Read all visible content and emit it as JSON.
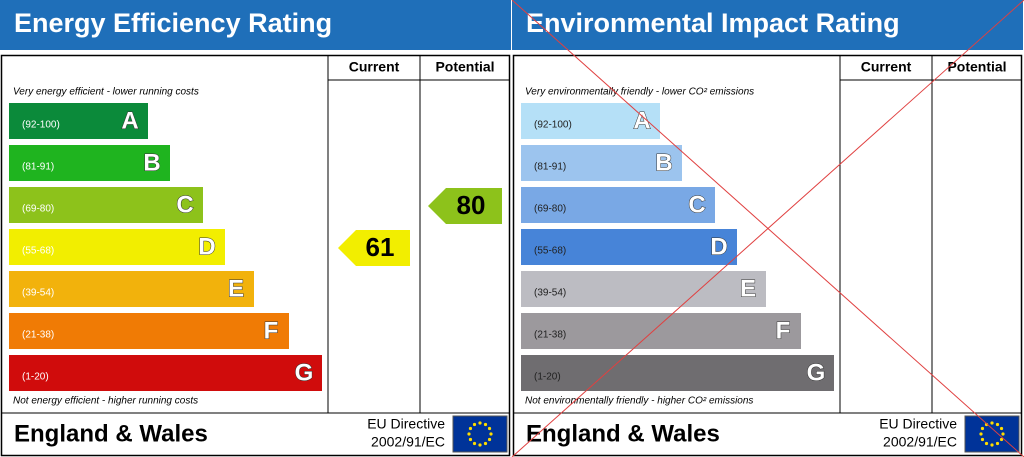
{
  "panels": [
    {
      "title": "Energy Efficiency Rating",
      "columns": [
        "Current",
        "Potential"
      ],
      "top_note": "Very energy efficient - lower running costs",
      "bottom_note": "Not energy efficient - higher running costs",
      "bands": [
        {
          "range": "(92-100)",
          "letter": "A",
          "color": "#0b8a3a"
        },
        {
          "range": "(81-91)",
          "letter": "B",
          "color": "#1fb41f"
        },
        {
          "range": "(69-80)",
          "letter": "C",
          "color": "#8dc21b"
        },
        {
          "range": "(55-68)",
          "letter": "D",
          "color": "#f2ee00"
        },
        {
          "range": "(39-54)",
          "letter": "E",
          "color": "#f2b20c"
        },
        {
          "range": "(21-38)",
          "letter": "F",
          "color": "#f07b05"
        },
        {
          "range": "(1-20)",
          "letter": "G",
          "color": "#d00c0c"
        }
      ],
      "current": 61,
      "potential": 80,
      "region": "England & Wales",
      "directive": "EU Directive",
      "directive_code": "2002/91/EC"
    },
    {
      "title": "Environmental Impact Rating",
      "columns": [
        "Current",
        "Potential"
      ],
      "top_note": "Very environmentally friendly - lower CO² emissions",
      "bottom_note": "Not environmentally friendly - higher CO² emissions",
      "bands": [
        {
          "range": "(92-100)",
          "letter": "A",
          "color": "#b5e0f7"
        },
        {
          "range": "(81-91)",
          "letter": "B",
          "color": "#9cc4ee"
        },
        {
          "range": "(69-80)",
          "letter": "C",
          "color": "#79a8e5"
        },
        {
          "range": "(55-68)",
          "letter": "D",
          "color": "#4784d8"
        },
        {
          "range": "(39-54)",
          "letter": "E",
          "color": "#bcbcc2"
        },
        {
          "range": "(21-38)",
          "letter": "F",
          "color": "#9c999d"
        },
        {
          "range": "(1-20)",
          "letter": "G",
          "color": "#6f6d70"
        }
      ],
      "region": "England & Wales",
      "directive": "EU Directive",
      "directive_code": "2002/91/EC"
    }
  ]
}
